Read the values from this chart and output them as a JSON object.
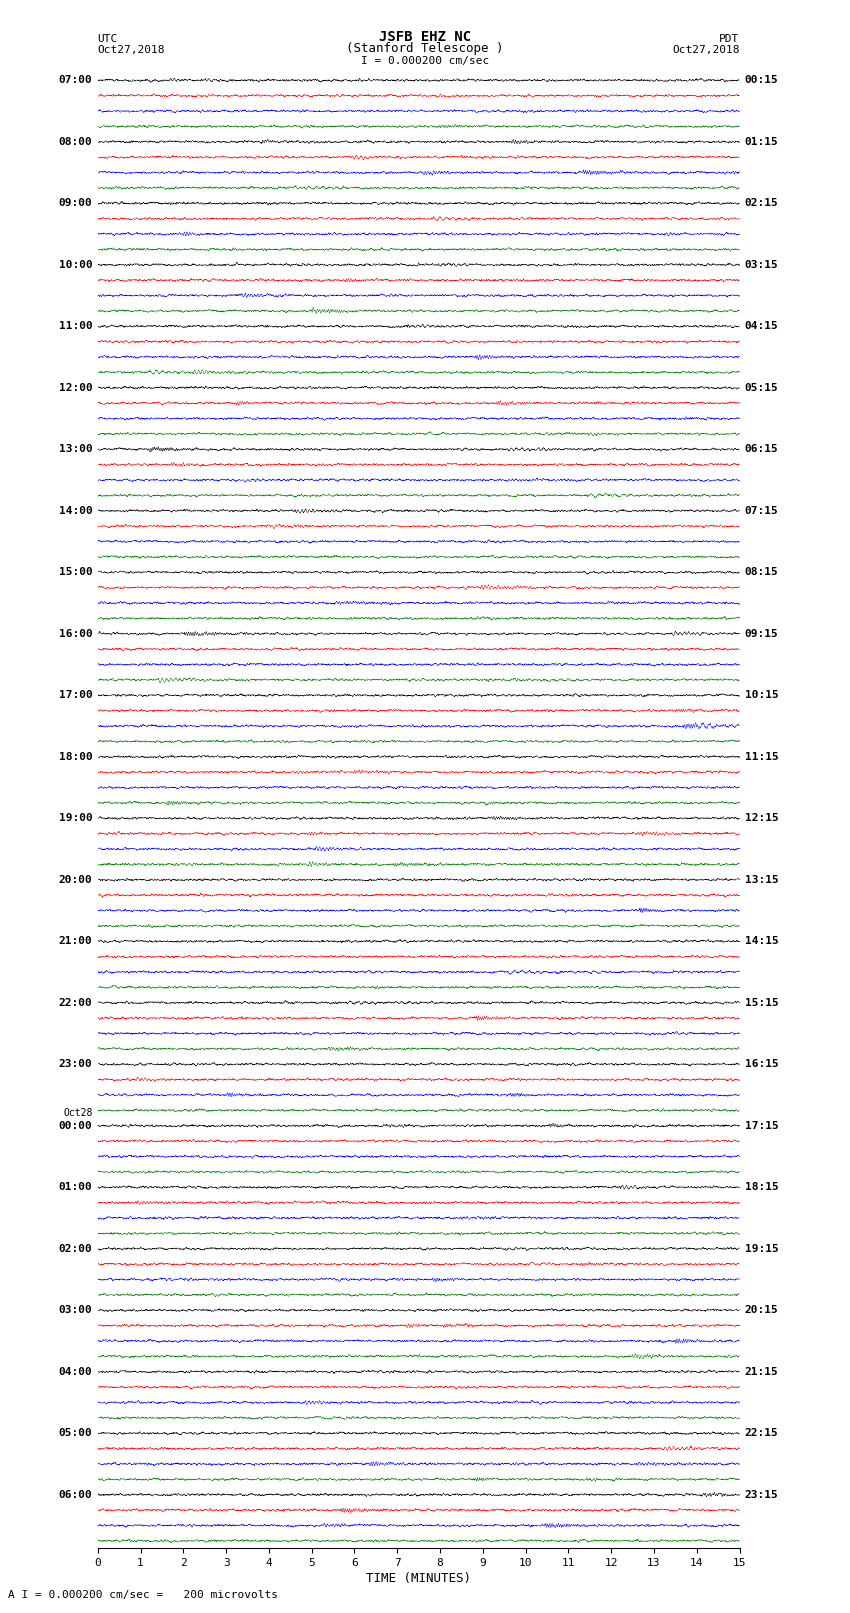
{
  "title_line1": "JSFB EHZ NC",
  "title_line2": "(Stanford Telescope )",
  "scale_label": "I = 0.000200 cm/sec",
  "left_header_line1": "UTC",
  "left_header_line2": "Oct27,2018",
  "right_header_line1": "PDT",
  "right_header_line2": "Oct27,2018",
  "bottom_label": "TIME (MINUTES)",
  "bottom_note": "A I = 0.000200 cm/sec =   200 microvolts",
  "xlabel_ticks": [
    0,
    1,
    2,
    3,
    4,
    5,
    6,
    7,
    8,
    9,
    10,
    11,
    12,
    13,
    14,
    15
  ],
  "left_times": [
    "07:00",
    "08:00",
    "09:00",
    "10:00",
    "11:00",
    "12:00",
    "13:00",
    "14:00",
    "15:00",
    "16:00",
    "17:00",
    "18:00",
    "19:00",
    "20:00",
    "21:00",
    "22:00",
    "23:00",
    "Oct28\n00:00",
    "01:00",
    "02:00",
    "03:00",
    "04:00",
    "05:00",
    "06:00"
  ],
  "right_times": [
    "00:15",
    "01:15",
    "02:15",
    "03:15",
    "04:15",
    "05:15",
    "06:15",
    "07:15",
    "08:15",
    "09:15",
    "10:15",
    "11:15",
    "12:15",
    "13:15",
    "14:15",
    "15:15",
    "16:15",
    "17:15",
    "18:15",
    "19:15",
    "20:15",
    "21:15",
    "22:15",
    "23:15"
  ],
  "n_hours": 24,
  "traces_per_hour": 4,
  "colors": [
    "black",
    "red",
    "blue",
    "green"
  ],
  "bg_color": "white",
  "fig_width": 8.5,
  "fig_height": 16.13,
  "dpi": 100,
  "noise_amplitude": 0.035,
  "n_minutes": 15,
  "n_samples": 4500
}
